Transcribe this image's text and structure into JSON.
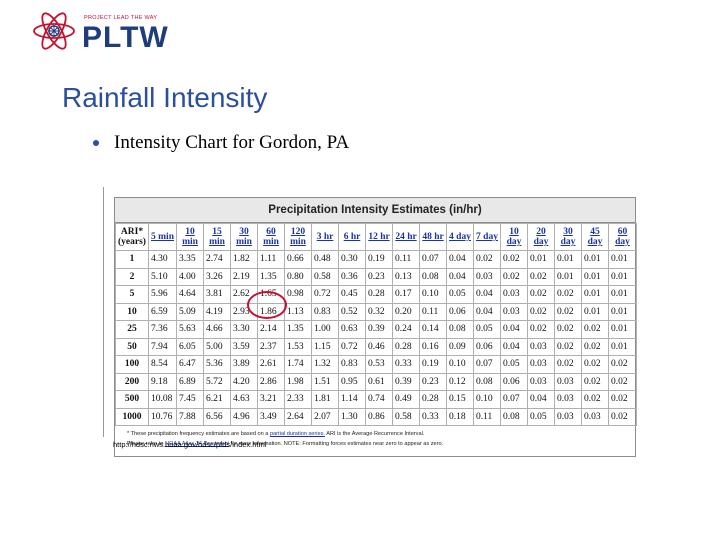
{
  "logo": {
    "small_text": "PROJECT LEAD THE WAY",
    "big_text": "PLTW"
  },
  "slide": {
    "title": "Rainfall Intensity",
    "bullet": "Intensity Chart for Gordon, PA"
  },
  "table": {
    "title": "Precipitation Intensity Estimates (in/hr)",
    "ari_header": [
      "ARI*",
      "(years)"
    ],
    "headers": [
      [
        "5 min"
      ],
      [
        "10",
        "min"
      ],
      [
        "15",
        "min"
      ],
      [
        "30",
        "min"
      ],
      [
        "60",
        "min"
      ],
      [
        "120",
        "min"
      ],
      [
        "3 hr"
      ],
      [
        "6 hr"
      ],
      [
        "12 hr"
      ],
      [
        "24 hr"
      ],
      [
        "48 hr"
      ],
      [
        "4 day"
      ],
      [
        "7 day"
      ],
      [
        "10",
        "day"
      ],
      [
        "20",
        "day"
      ],
      [
        "30",
        "day"
      ],
      [
        "45",
        "day"
      ],
      [
        "60",
        "day"
      ]
    ],
    "rows": [
      {
        "ari": "1",
        "values": [
          "4.30",
          "3.35",
          "2.74",
          "1.82",
          "1.11",
          "0.66",
          "0.48",
          "0.30",
          "0.19",
          "0.11",
          "0.07",
          "0.04",
          "0.02",
          "0.02",
          "0.01",
          "0.01",
          "0.01",
          "0.01"
        ]
      },
      {
        "ari": "2",
        "values": [
          "5.10",
          "4.00",
          "3.26",
          "2.19",
          "1.35",
          "0.80",
          "0.58",
          "0.36",
          "0.23",
          "0.13",
          "0.08",
          "0.04",
          "0.03",
          "0.02",
          "0.02",
          "0.01",
          "0.01",
          "0.01"
        ]
      },
      {
        "ari": "5",
        "values": [
          "5.96",
          "4.64",
          "3.81",
          "2.62",
          "1.65",
          "0.98",
          "0.72",
          "0.45",
          "0.28",
          "0.17",
          "0.10",
          "0.05",
          "0.04",
          "0.03",
          "0.02",
          "0.02",
          "0.01",
          "0.01"
        ]
      },
      {
        "ari": "10",
        "values": [
          "6.59",
          "5.09",
          "4.19",
          "2.93",
          "1.86",
          "1.13",
          "0.83",
          "0.52",
          "0.32",
          "0.20",
          "0.11",
          "0.06",
          "0.04",
          "0.03",
          "0.02",
          "0.02",
          "0.01",
          "0.01"
        ]
      },
      {
        "ari": "25",
        "values": [
          "7.36",
          "5.63",
          "4.66",
          "3.30",
          "2.14",
          "1.35",
          "1.00",
          "0.63",
          "0.39",
          "0.24",
          "0.14",
          "0.08",
          "0.05",
          "0.04",
          "0.02",
          "0.02",
          "0.02",
          "0.01"
        ]
      },
      {
        "ari": "50",
        "values": [
          "7.94",
          "6.05",
          "5.00",
          "3.59",
          "2.37",
          "1.53",
          "1.15",
          "0.72",
          "0.46",
          "0.28",
          "0.16",
          "0.09",
          "0.06",
          "0.04",
          "0.03",
          "0.02",
          "0.02",
          "0.01"
        ]
      },
      {
        "ari": "100",
        "values": [
          "8.54",
          "6.47",
          "5.36",
          "3.89",
          "2.61",
          "1.74",
          "1.32",
          "0.83",
          "0.53",
          "0.33",
          "0.19",
          "0.10",
          "0.07",
          "0.05",
          "0.03",
          "0.02",
          "0.02",
          "0.02"
        ]
      },
      {
        "ari": "200",
        "values": [
          "9.18",
          "6.89",
          "5.72",
          "4.20",
          "2.86",
          "1.98",
          "1.51",
          "0.95",
          "0.61",
          "0.39",
          "0.23",
          "0.12",
          "0.08",
          "0.06",
          "0.03",
          "0.03",
          "0.02",
          "0.02"
        ]
      },
      {
        "ari": "500",
        "values": [
          "10.08",
          "7.45",
          "6.21",
          "4.63",
          "3.21",
          "2.33",
          "1.81",
          "1.14",
          "0.74",
          "0.49",
          "0.28",
          "0.15",
          "0.10",
          "0.07",
          "0.04",
          "0.03",
          "0.02",
          "0.02"
        ]
      },
      {
        "ari": "1000",
        "values": [
          "10.76",
          "7.88",
          "6.56",
          "4.96",
          "3.49",
          "2.64",
          "2.07",
          "1.30",
          "0.86",
          "0.58",
          "0.33",
          "0.18",
          "0.11",
          "0.08",
          "0.05",
          "0.03",
          "0.03",
          "0.02"
        ]
      }
    ],
    "footnote1": {
      "before": "* These precipitation frequency estimates are based on a ",
      "link": "partial duration series.",
      "after": " ARI is the Average Recurrence Interval."
    },
    "footnote2": {
      "before": "Please refer to ",
      "link": "NOAA Atlas 14 Document",
      "after": " for more information. NOTE: Formatting forces estimates near zero to appear as zero."
    }
  },
  "source_url": "http://hdsc.nws.noaa.gov/hdsc/pfds/index.html",
  "colors": {
    "title_blue": "#2b4f9e",
    "logo_red": "#c8102e",
    "logo_navy": "#1f3d7a",
    "link_blue": "#1a32a8"
  }
}
